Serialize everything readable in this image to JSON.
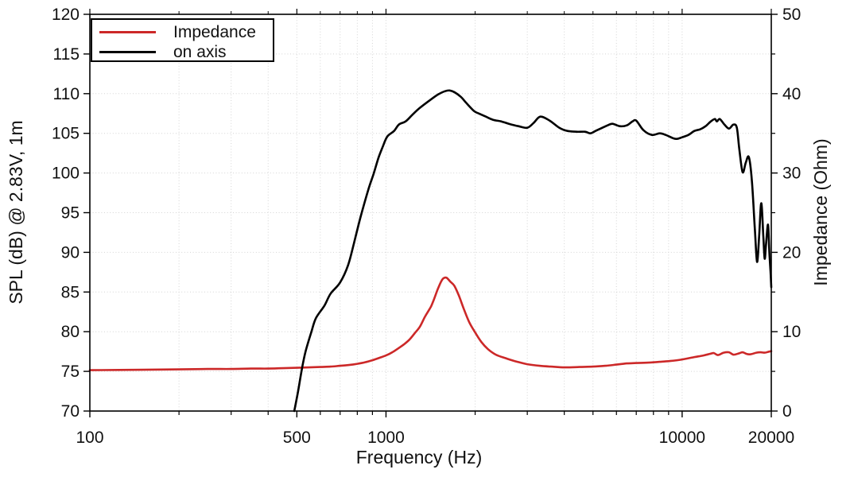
{
  "colors": {
    "impedance": "#cc2828",
    "on_axis": "#000000",
    "grid": "#d4d4d4",
    "frame": "#000000",
    "text": "#111111",
    "background": "#ffffff"
  },
  "chart_data": {
    "type": "line",
    "title": "",
    "x_scale": "log",
    "xlabel": "Frequency (Hz)",
    "ylabel_left": "SPL (dB) @ 2.83V, 1m",
    "ylabel_right": "Impedance (Ohm)",
    "xlim": [
      100,
      20000
    ],
    "ylim_left": [
      70,
      120
    ],
    "ylim_right": [
      0,
      50
    ],
    "grid": true,
    "x_major_ticks": [
      100,
      500,
      1000,
      10000,
      20000
    ],
    "x_minor_ticks": [
      200,
      300,
      400,
      600,
      700,
      800,
      900,
      2000,
      3000,
      4000,
      5000,
      6000,
      7000,
      8000,
      9000
    ],
    "y_left_ticks": [
      70,
      75,
      80,
      85,
      90,
      95,
      100,
      105,
      110,
      115,
      120
    ],
    "y_right_major_ticks": [
      0,
      10,
      20,
      30,
      40,
      50
    ],
    "y_right_minor_ticks": [
      5,
      15,
      25,
      35,
      45
    ],
    "legend": {
      "position": "top-left",
      "entries": [
        {
          "label": "Impedance",
          "series": "impedance"
        },
        {
          "label": "on axis",
          "series": "on_axis"
        }
      ]
    },
    "series": [
      {
        "id": "impedance",
        "name": "Impedance",
        "axis": "right",
        "unit": "Ohm",
        "color_key": "impedance",
        "points": [
          [
            100,
            5.15
          ],
          [
            150,
            5.2
          ],
          [
            200,
            5.25
          ],
          [
            250,
            5.3
          ],
          [
            300,
            5.3
          ],
          [
            350,
            5.35
          ],
          [
            400,
            5.35
          ],
          [
            450,
            5.4
          ],
          [
            500,
            5.45
          ],
          [
            550,
            5.5
          ],
          [
            600,
            5.55
          ],
          [
            650,
            5.6
          ],
          [
            700,
            5.7
          ],
          [
            750,
            5.8
          ],
          [
            800,
            5.95
          ],
          [
            850,
            6.15
          ],
          [
            900,
            6.4
          ],
          [
            950,
            6.7
          ],
          [
            1000,
            7.0
          ],
          [
            1050,
            7.4
          ],
          [
            1100,
            7.9
          ],
          [
            1150,
            8.4
          ],
          [
            1200,
            9.0
          ],
          [
            1250,
            9.8
          ],
          [
            1300,
            10.6
          ],
          [
            1350,
            11.8
          ],
          [
            1390,
            12.6
          ],
          [
            1420,
            13.2
          ],
          [
            1450,
            14.0
          ],
          [
            1490,
            15.2
          ],
          [
            1530,
            16.2
          ],
          [
            1560,
            16.7
          ],
          [
            1600,
            16.8
          ],
          [
            1650,
            16.3
          ],
          [
            1700,
            15.8
          ],
          [
            1760,
            14.6
          ],
          [
            1830,
            12.9
          ],
          [
            1910,
            11.2
          ],
          [
            2000,
            9.9
          ],
          [
            2100,
            8.7
          ],
          [
            2210,
            7.8
          ],
          [
            2350,
            7.1
          ],
          [
            2560,
            6.6
          ],
          [
            2780,
            6.2
          ],
          [
            3000,
            5.9
          ],
          [
            3300,
            5.7
          ],
          [
            3600,
            5.6
          ],
          [
            4000,
            5.5
          ],
          [
            4500,
            5.55
          ],
          [
            5000,
            5.6
          ],
          [
            5500,
            5.7
          ],
          [
            6000,
            5.85
          ],
          [
            6500,
            6.0
          ],
          [
            7000,
            6.05
          ],
          [
            7700,
            6.1
          ],
          [
            8400,
            6.2
          ],
          [
            9100,
            6.3
          ],
          [
            10000,
            6.5
          ],
          [
            11000,
            6.8
          ],
          [
            11800,
            7.0
          ],
          [
            12400,
            7.2
          ],
          [
            12800,
            7.3
          ],
          [
            13200,
            7.05
          ],
          [
            13800,
            7.35
          ],
          [
            14400,
            7.4
          ],
          [
            14900,
            7.1
          ],
          [
            15500,
            7.25
          ],
          [
            16000,
            7.4
          ],
          [
            16500,
            7.2
          ],
          [
            17000,
            7.15
          ],
          [
            17800,
            7.35
          ],
          [
            18400,
            7.4
          ],
          [
            19000,
            7.35
          ],
          [
            19500,
            7.45
          ],
          [
            20000,
            7.55
          ]
        ]
      },
      {
        "id": "on_axis",
        "name": "on axis",
        "axis": "left",
        "unit": "dB",
        "color_key": "on_axis",
        "points": [
          [
            490,
            70
          ],
          [
            505,
            72.5
          ],
          [
            520,
            75.3
          ],
          [
            535,
            77.5
          ],
          [
            560,
            80
          ],
          [
            580,
            81.7
          ],
          [
            620,
            83.3
          ],
          [
            650,
            84.8
          ],
          [
            700,
            86.2
          ],
          [
            745,
            88.4
          ],
          [
            780,
            91.2
          ],
          [
            820,
            94.4
          ],
          [
            870,
            97.8
          ],
          [
            910,
            100
          ],
          [
            945,
            102
          ],
          [
            975,
            103.3
          ],
          [
            1010,
            104.6
          ],
          [
            1065,
            105.3
          ],
          [
            1105,
            106.1
          ],
          [
            1165,
            106.5
          ],
          [
            1225,
            107.3
          ],
          [
            1300,
            108.2
          ],
          [
            1410,
            109.2
          ],
          [
            1500,
            109.9
          ],
          [
            1580,
            110.3
          ],
          [
            1640,
            110.4
          ],
          [
            1700,
            110.2
          ],
          [
            1790,
            109.6
          ],
          [
            1870,
            108.8
          ],
          [
            1985,
            107.8
          ],
          [
            2060,
            107.5
          ],
          [
            2175,
            107.1
          ],
          [
            2300,
            106.7
          ],
          [
            2450,
            106.5
          ],
          [
            2600,
            106.2
          ],
          [
            2800,
            105.9
          ],
          [
            3000,
            105.7
          ],
          [
            3150,
            106.3
          ],
          [
            3320,
            107.1
          ],
          [
            3570,
            106.6
          ],
          [
            3850,
            105.7
          ],
          [
            4100,
            105.3
          ],
          [
            4400,
            105.2
          ],
          [
            4700,
            105.2
          ],
          [
            4900,
            105.0
          ],
          [
            5100,
            105.3
          ],
          [
            5600,
            106.0
          ],
          [
            5820,
            106.2
          ],
          [
            6150,
            105.9
          ],
          [
            6500,
            106.0
          ],
          [
            6800,
            106.5
          ],
          [
            7000,
            106.6
          ],
          [
            7400,
            105.4
          ],
          [
            7900,
            104.8
          ],
          [
            8400,
            105.0
          ],
          [
            8800,
            104.8
          ],
          [
            9300,
            104.4
          ],
          [
            9600,
            104.3
          ],
          [
            10000,
            104.5
          ],
          [
            10500,
            104.8
          ],
          [
            11000,
            105.3
          ],
          [
            11500,
            105.5
          ],
          [
            12000,
            105.9
          ],
          [
            12500,
            106.5
          ],
          [
            12900,
            106.8
          ],
          [
            13100,
            106.5
          ],
          [
            13400,
            106.8
          ],
          [
            13900,
            106.1
          ],
          [
            14400,
            105.6
          ],
          [
            14900,
            106.1
          ],
          [
            15300,
            105.7
          ],
          [
            15600,
            103
          ],
          [
            16000,
            100.1
          ],
          [
            16400,
            101.3
          ],
          [
            16800,
            102.0
          ],
          [
            17200,
            99
          ],
          [
            17600,
            93
          ],
          [
            17900,
            88.8
          ],
          [
            18200,
            92
          ],
          [
            18500,
            96.2
          ],
          [
            18800,
            92
          ],
          [
            19000,
            89.2
          ],
          [
            19200,
            91
          ],
          [
            19500,
            93.5
          ],
          [
            19700,
            90
          ],
          [
            19900,
            87.3
          ],
          [
            20000,
            85.6
          ]
        ]
      }
    ]
  }
}
